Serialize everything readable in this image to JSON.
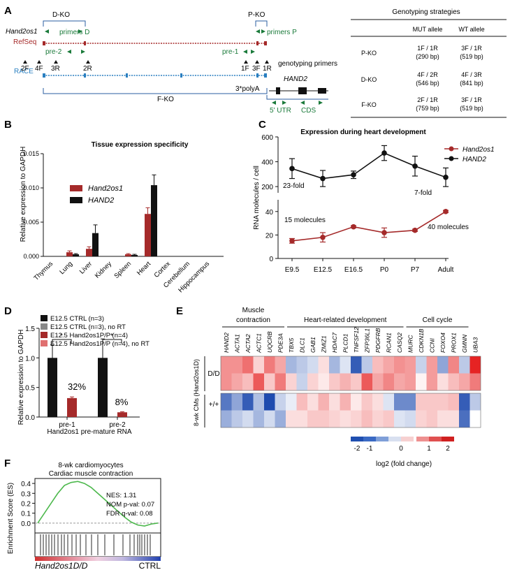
{
  "panel_letters": {
    "a": "A",
    "b": "B",
    "c": "C",
    "d": "D",
    "e": "E",
    "f": "F"
  },
  "colors": {
    "red": "#a52a2a",
    "black": "#111111",
    "green": "#1a7a3a",
    "blue": "#2a7fc0",
    "maroon": "#b03030"
  },
  "panel_a": {
    "gene_label": "Hand2os1",
    "refseq": "RefSeq",
    "race": "RACE",
    "dko": "D-KO",
    "pko": "P-KO",
    "fko": "F-KO",
    "primers_d": "primers D",
    "primers_p": "primers P",
    "pre2": "pre-2",
    "pre1": "pre-1",
    "g_2f": "2F",
    "g_4f": "4F",
    "g_3r": "3R",
    "g_2r": "2R",
    "g_1f": "1F",
    "g_3f": "3F",
    "g_1r": "1R",
    "genotyping_primers": "genotyping primers",
    "hand2": "HAND2",
    "polya": "3*polyA",
    "utr": "5' UTR",
    "cds": "CDS",
    "table": {
      "title": "Genotyping strategies",
      "headers": [
        "",
        "MUT allele",
        "WT allele"
      ],
      "rows": [
        {
          "name": "P-KO",
          "mut1": "1F / 1R",
          "mut2": "(290 bp)",
          "wt1": "3F / 1R",
          "wt2": "(519 bp)"
        },
        {
          "name": "D-KO",
          "mut1": "4F / 2R",
          "mut2": "(546 bp)",
          "wt1": "4F / 3R",
          "wt2": "(841 bp)"
        },
        {
          "name": "F-KO",
          "mut1": "2F / 1R",
          "mut2": "(759 bp)",
          "wt1": "3F / 1R",
          "wt2": "(519 bp)"
        }
      ]
    }
  },
  "chart_data": [
    {
      "id": "B",
      "type": "bar",
      "title": "Tissue expression specificity",
      "ylabel": "Relative expression to GAPDH",
      "ylim": [
        0,
        0.015
      ],
      "yticks": [
        "0.000",
        "0.005",
        "0.010",
        "0.015"
      ],
      "categories": [
        "Thymus",
        "Lung",
        "Liver",
        "Kidney",
        "Spleen",
        "Heart",
        "Cortex",
        "Cerebellum",
        "Hippocampus"
      ],
      "series": [
        {
          "name": "Hand2os1",
          "color": "#a52a2a",
          "values": [
            0,
            0.0006,
            0.0011,
            0,
            0.0003,
            0.0062,
            0,
            0,
            0
          ],
          "errors": [
            0,
            0.0002,
            0.0003,
            0,
            0.0001,
            0.0009,
            0,
            0,
            0
          ]
        },
        {
          "name": "HAND2",
          "color": "#111111",
          "values": [
            0,
            0.0003,
            0.0034,
            0,
            0.0002,
            0.0104,
            0,
            0,
            0
          ],
          "errors": [
            0,
            0.0001,
            0.0012,
            0,
            0.0001,
            0.0015,
            0,
            0,
            0
          ]
        }
      ]
    },
    {
      "id": "C",
      "type": "line",
      "title": "Expression during heart development",
      "ylabel": "RNA molecules / cell",
      "categories": [
        "E9.5",
        "E12.5",
        "E16.5",
        "P0",
        "P7",
        "Adult"
      ],
      "upper_yticks": [
        "200",
        "400",
        "600"
      ],
      "lower_yticks": [
        "0",
        "20",
        "40"
      ],
      "series": [
        {
          "name": "Hand2os1",
          "color": "#a52a2a",
          "values": [
            15,
            18,
            27,
            22,
            24,
            40
          ],
          "errors": [
            2,
            4,
            1,
            4,
            1,
            1
          ]
        },
        {
          "name": "HAND2",
          "color": "#111111",
          "values": [
            345,
            265,
            295,
            470,
            365,
            275
          ],
          "errors": [
            80,
            65,
            30,
            60,
            80,
            75
          ]
        }
      ],
      "annotations": {
        "fold23": "23-fold",
        "fold7": "7-fold",
        "mol15": "15 molecules",
        "mol40": "40 molecules"
      }
    },
    {
      "id": "D",
      "type": "bar",
      "ylabel": "Relative expression to GAPDH",
      "ylim": [
        0,
        1.5
      ],
      "yticks": [
        "0.0",
        "0.5",
        "1.0",
        "1.5"
      ],
      "categories": [
        "pre-1",
        "pre-2"
      ],
      "xlabel": "Hand2os1 pre-mature RNA",
      "legend": [
        {
          "label": "E12.5 CTRL (n=3)",
          "color": "#111111"
        },
        {
          "label": "E12.5 CTRL (n=3), no RT",
          "color": "#888888"
        },
        {
          "label": "E12.5 Hand2os1P/P (n=4)",
          "color": "#a52a2a"
        },
        {
          "label": "E12.5 Hand2os1P/P (n=4), no RT",
          "color": "#e07070"
        }
      ],
      "series": [
        {
          "name": "E12.5 CTRL (n=3)",
          "color": "#111111",
          "values": [
            1.0,
            1.0
          ],
          "errors": [
            0.22,
            0.32
          ]
        },
        {
          "name": "E12.5 CTRL (n=3), no RT",
          "color": "#888888",
          "values": [
            0,
            0
          ],
          "errors": [
            0,
            0
          ]
        },
        {
          "name": "E12.5 Hand2os1P/P (n=4)",
          "color": "#a52a2a",
          "values": [
            0.32,
            0.08
          ],
          "errors": [
            0.02,
            0.01
          ]
        },
        {
          "name": "E12.5 Hand2os1P/P (n=4), no RT",
          "color": "#e07070",
          "values": [
            0,
            0
          ],
          "errors": [
            0,
            0
          ]
        }
      ],
      "annotations": {
        "pct1": "32%",
        "pct2": "8%",
        "star": "*"
      }
    },
    {
      "id": "E",
      "type": "heatmap",
      "group_labels": [
        "Muscle contraction",
        "Heart-related development",
        "Cell cycle"
      ],
      "group_spans": [
        [
          0,
          5
        ],
        [
          6,
          16
        ],
        [
          17,
          22
        ]
      ],
      "genes": [
        "HAND2",
        "ACTA1",
        "ACTA2",
        "ACTC1",
        "UQCRB",
        "PDE3A",
        "TBX5",
        "DLC1",
        "GAB1",
        "ZMIZ1",
        "HDAC7",
        "PLCD1",
        "TNFSF12",
        "ZFP36L1",
        "PDGFRB",
        "RCAN1",
        "CASQ2",
        "MURC",
        "CDKN1B",
        "CCNI",
        "FOXO4",
        "PROX1",
        "GMNN",
        "UBA3"
      ],
      "row_groups": [
        "D/D",
        "+/+"
      ],
      "y_axis": "8-wk CMs (Hand2os1D)",
      "matrix": [
        [
          1.0,
          1.0,
          1.3,
          0.4,
          1.2,
          0.8,
          -0.8,
          -0.6,
          -0.4,
          0.3,
          -0.8,
          -0.3,
          -1.8,
          -0.6,
          0.6,
          0.8,
          1.0,
          0.9,
          -0.5,
          0.9,
          -1.0,
          1.1,
          -0.6,
          2.0
        ],
        [
          1.0,
          0.8,
          0.6,
          1.5,
          0.5,
          1.2,
          0.4,
          -0.5,
          0.4,
          0.2,
          0.5,
          0.7,
          0.5,
          1.5,
          0.8,
          1.1,
          0.8,
          0.9,
          0.1,
          0.9,
          0.3,
          0.6,
          0.8,
          1.2
        ],
        [
          -1.5,
          -1.0,
          -1.8,
          -0.7,
          -2.0,
          -0.5,
          -0.2,
          0.6,
          0.3,
          0.7,
          0.3,
          0.7,
          0.2,
          0.5,
          0.3,
          -0.3,
          -1.3,
          -1.3,
          0.5,
          0.5,
          0.5,
          0.6,
          -1.8,
          -0.6
        ],
        [
          -0.9,
          -0.6,
          -0.4,
          -0.8,
          -0.4,
          -0.9,
          0.3,
          0.3,
          0.5,
          0.5,
          0.4,
          0.3,
          0.4,
          0.6,
          0.4,
          0.5,
          -0.3,
          -0.4,
          0.4,
          0.5,
          0.3,
          0.3,
          -1.6,
          0.0
        ]
      ],
      "colorbar_ticks": [
        "-2",
        "-1",
        "0",
        "1",
        "2"
      ],
      "colorbar_label": "log2 (fold change)"
    },
    {
      "id": "F",
      "type": "line",
      "title_line1": "8-wk cardiomyocytes",
      "title_line2": "Cardiac muscle contraction",
      "ylabel": "Enrichment Score (ES)",
      "yticks": [
        "0.4",
        "0.3",
        "0.2",
        "0.1",
        "0.0"
      ],
      "ylim": [
        -0.1,
        0.45
      ],
      "series": [
        {
          "name": "ES",
          "color": "#4cb84c",
          "values": [
            0,
            0.1,
            0.2,
            0.3,
            0.38,
            0.41,
            0.42,
            0.4,
            0.36,
            0.3,
            0.24,
            0.18,
            0.12,
            0.06,
            0.01,
            -0.02,
            -0.03,
            -0.01,
            0.0
          ]
        }
      ],
      "stats": {
        "nes": "NES: 1.31",
        "nom": "NOM p-val: 0.07",
        "fdr": "FDR q-val: 0.08"
      },
      "left_label": "Hand2os1D/D",
      "right_label": "CTRL"
    }
  ]
}
